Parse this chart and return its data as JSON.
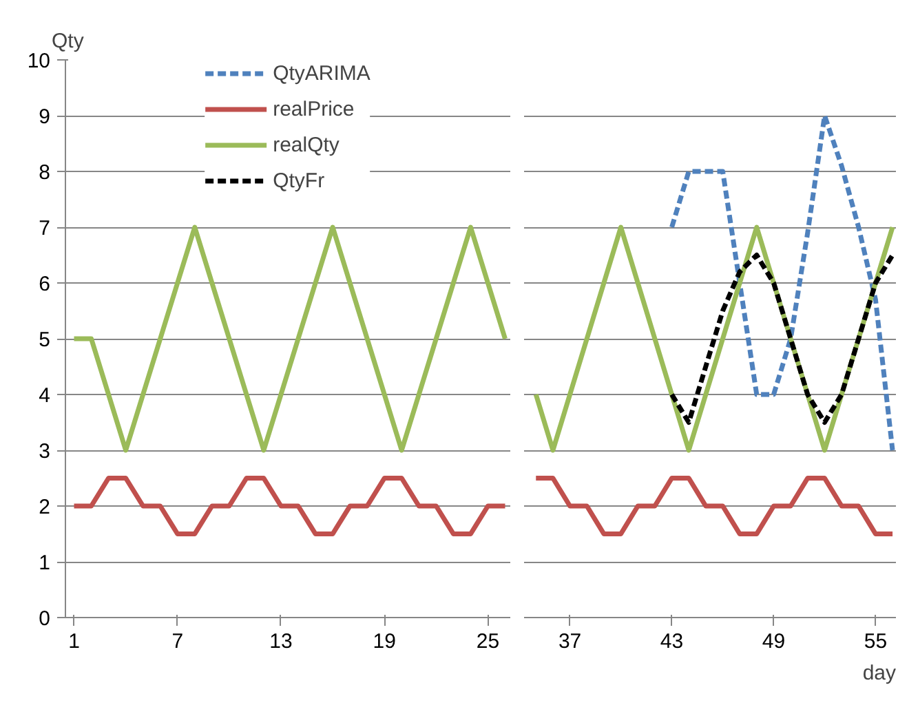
{
  "chart_data": [
    {
      "type": "line",
      "ylabel": "Qty",
      "xlim": [
        0.5,
        26.3
      ],
      "ylim": [
        0,
        10
      ],
      "xticks": [
        1,
        7,
        13,
        19,
        25
      ],
      "yticks": [
        0,
        1,
        2,
        3,
        4,
        5,
        6,
        7,
        8,
        9,
        10
      ],
      "grid": "y",
      "marker": "none",
      "series": [
        {
          "color": "#c0504d",
          "line_style": "solid",
          "x": [
            1,
            2,
            3,
            4,
            5,
            6,
            7,
            8,
            9,
            10,
            11,
            12,
            13,
            14,
            15,
            16,
            17,
            18,
            19,
            20,
            21,
            22,
            23,
            24,
            25,
            26
          ],
          "values": [
            2,
            2,
            2.5,
            2.5,
            2,
            2,
            1.5,
            1.5,
            2,
            2,
            2.5,
            2.5,
            2,
            2,
            1.5,
            1.5,
            2,
            2,
            2.5,
            2.5,
            2,
            2,
            1.5,
            1.5,
            2,
            2
          ]
        },
        {
          "color": "#9bbb59",
          "line_style": "solid",
          "x": [
            1,
            2,
            3,
            4,
            5,
            6,
            7,
            8,
            9,
            10,
            11,
            12,
            13,
            14,
            15,
            16,
            17,
            18,
            19,
            20,
            21,
            22,
            23,
            24,
            25,
            26
          ],
          "values": [
            5,
            5,
            4,
            3,
            4,
            5,
            6,
            7,
            6,
            5,
            4,
            3,
            4,
            5,
            6,
            7,
            6,
            5,
            4,
            3,
            4,
            5,
            6,
            7,
            6,
            5
          ]
        }
      ]
    },
    {
      "type": "line",
      "xlabel": "day",
      "xlim": [
        34.3,
        56.2
      ],
      "ylim": [
        0,
        10
      ],
      "xticks": [
        37,
        43,
        49,
        55
      ],
      "yticks": [
        0,
        1,
        2,
        3,
        4,
        5,
        6,
        7,
        8,
        9,
        10
      ],
      "grid": "y",
      "tick_labels": "x",
      "marker": "none",
      "legend": "top left",
      "series": [
        {
          "name": "QtyARIMA",
          "color": "#4f81bd",
          "line_style": "dashed",
          "x": [
            43,
            44,
            45,
            46,
            47,
            48,
            49,
            50,
            51,
            52,
            53,
            54,
            55,
            56
          ],
          "values": [
            7,
            8,
            8,
            8,
            6,
            4,
            4,
            5,
            6.9,
            9,
            8.1,
            7,
            5.7,
            3
          ]
        },
        {
          "name": "realPrice",
          "color": "#c0504d",
          "line_style": "solid",
          "x": [
            35,
            36,
            37,
            38,
            39,
            40,
            41,
            42,
            43,
            44,
            45,
            46,
            47,
            48,
            49,
            50,
            51,
            52,
            53,
            54,
            55,
            56
          ],
          "values": [
            2.5,
            2.5,
            2,
            2,
            1.5,
            1.5,
            2,
            2,
            2.5,
            2.5,
            2,
            2,
            1.5,
            1.5,
            2,
            2,
            2.5,
            2.5,
            2,
            2,
            1.5,
            1.5
          ]
        },
        {
          "name": "realQty",
          "color": "#9bbb59",
          "line_style": "solid",
          "x": [
            35,
            36,
            37,
            38,
            39,
            40,
            41,
            42,
            43,
            44,
            45,
            46,
            47,
            48,
            49,
            50,
            51,
            52,
            53,
            54,
            55,
            56
          ],
          "values": [
            4,
            3,
            4,
            5,
            6,
            7,
            6,
            5,
            4,
            3,
            4,
            5,
            6,
            7,
            6,
            5,
            4,
            3,
            4,
            5,
            6,
            7
          ]
        },
        {
          "name": "QtyFr",
          "color": "#000000",
          "line_style": "dashed",
          "x": [
            43,
            44,
            45,
            46,
            47,
            48,
            49,
            50,
            51,
            52,
            53,
            54,
            55,
            56
          ],
          "values": [
            4,
            3.5,
            4.5,
            5.5,
            6.2,
            6.5,
            6,
            5,
            4,
            3.5,
            4,
            5,
            6,
            6.5
          ]
        }
      ]
    }
  ]
}
